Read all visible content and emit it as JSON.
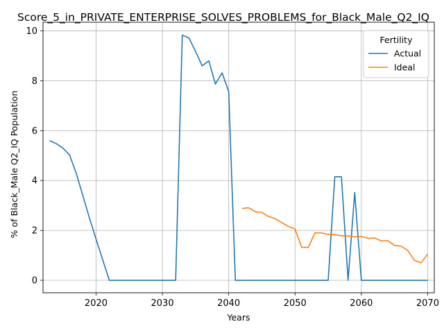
{
  "chart_data": {
    "type": "line",
    "title": "Score_5_in_PRIVATE_ENTERPRISE_SOLVES_PROBLEMS_for_Black_Male_Q2_IQ",
    "xlabel": "Years",
    "ylabel": "% of Black_Male Q2_IQ Population",
    "xlim": [
      2012,
      2071
    ],
    "ylim": [
      -0.5,
      10.35
    ],
    "xticks": [
      2020,
      2030,
      2040,
      2050,
      2060,
      2070
    ],
    "yticks": [
      0,
      2,
      4,
      6,
      8,
      10
    ],
    "grid": true,
    "legend": {
      "title": "Fertility",
      "placement": "top-right"
    },
    "series": [
      {
        "name": "Actual",
        "color": "#1f77b4",
        "x": [
          2013,
          2014,
          2015,
          2016,
          2017,
          2018,
          2019,
          2020,
          2021,
          2022,
          2023,
          2024,
          2025,
          2026,
          2027,
          2028,
          2029,
          2030,
          2031,
          2032,
          2033,
          2034,
          2035,
          2036,
          2037,
          2038,
          2039,
          2040,
          2041,
          2042,
          2043,
          2044,
          2045,
          2046,
          2047,
          2048,
          2049,
          2050,
          2051,
          2052,
          2053,
          2054,
          2055,
          2056,
          2057,
          2058,
          2059,
          2060,
          2061,
          2062,
          2063,
          2064,
          2065,
          2066,
          2067,
          2068,
          2069,
          2070
        ],
        "y": [
          5.6,
          5.48,
          5.3,
          5.03,
          4.3,
          3.4,
          2.5,
          1.65,
          0.82,
          0,
          0,
          0,
          0,
          0,
          0,
          0,
          0,
          0,
          0,
          0,
          9.83,
          9.72,
          9.18,
          8.6,
          8.8,
          7.87,
          8.32,
          7.57,
          0,
          0,
          0,
          0,
          0,
          0,
          0,
          0,
          0,
          0,
          0,
          0,
          0,
          0,
          0,
          4.15,
          4.15,
          0,
          3.52,
          0,
          0,
          0,
          0,
          0,
          0,
          0,
          0,
          0,
          0,
          0
        ]
      },
      {
        "name": "Ideal",
        "color": "#ff7f0e",
        "x": [
          2042,
          2043,
          2044,
          2045,
          2046,
          2047,
          2048,
          2049,
          2050,
          2051,
          2052,
          2053,
          2054,
          2055,
          2056,
          2057,
          2058,
          2059,
          2060,
          2061,
          2062,
          2063,
          2064,
          2065,
          2066,
          2067,
          2068,
          2069,
          2070
        ],
        "y": [
          2.88,
          2.91,
          2.75,
          2.72,
          2.56,
          2.47,
          2.31,
          2.16,
          2.06,
          1.32,
          1.32,
          1.9,
          1.9,
          1.84,
          1.84,
          1.78,
          1.78,
          1.74,
          1.76,
          1.68,
          1.7,
          1.58,
          1.59,
          1.4,
          1.37,
          1.2,
          0.8,
          0.7,
          1.05
        ]
      }
    ]
  }
}
